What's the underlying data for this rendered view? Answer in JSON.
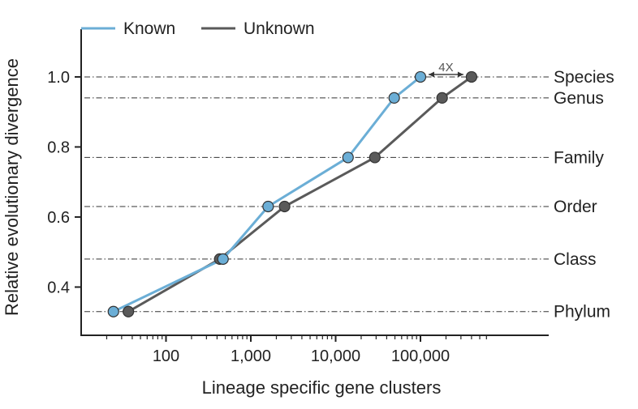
{
  "chart_data": {
    "type": "line",
    "xlabel": "Lineage specific gene clusters",
    "ylabel": "Relative evolutionary divergence",
    "x_scale": "log",
    "xlim": [
      10,
      600000
    ],
    "ylim": [
      0.26,
      1.05
    ],
    "x_ticks": [
      {
        "value": 100,
        "label": "100"
      },
      {
        "value": 1000,
        "label": "1,000"
      },
      {
        "value": 10000,
        "label": "10,000"
      },
      {
        "value": 100000,
        "label": "100,000"
      }
    ],
    "y_ticks": [
      {
        "value": 0.4,
        "label": "0.4"
      },
      {
        "value": 0.6,
        "label": "0.6"
      },
      {
        "value": 0.8,
        "label": "0.8"
      },
      {
        "value": 1.0,
        "label": "1.0"
      }
    ],
    "ranks": [
      {
        "name": "Phylum",
        "y": 0.33
      },
      {
        "name": "Class",
        "y": 0.48
      },
      {
        "name": "Order",
        "y": 0.63
      },
      {
        "name": "Family",
        "y": 0.77
      },
      {
        "name": "Genus",
        "y": 0.94
      },
      {
        "name": "Species",
        "y": 1.0
      }
    ],
    "series": [
      {
        "name": "Known",
        "color": "#6baed6",
        "point_color": "#6baed6",
        "x": [
          24,
          470,
          1600,
          14000,
          49000,
          100000
        ],
        "y": [
          0.33,
          0.48,
          0.63,
          0.77,
          0.94,
          1.0
        ]
      },
      {
        "name": "Unknown",
        "color": "#5a5a5a",
        "point_color": "#5a5a5a",
        "x": [
          36,
          430,
          2500,
          29000,
          180000,
          400000
        ],
        "y": [
          0.33,
          0.48,
          0.63,
          0.77,
          0.94,
          1.0
        ]
      }
    ],
    "annotations": [
      {
        "text": "4X",
        "type": "double-arrow",
        "x_from": 100000,
        "x_to": 400000,
        "y": 1.0
      }
    ],
    "grid": "dash-dot lines at rank levels",
    "legend": {
      "position": "top-left",
      "orientation": "horizontal"
    }
  }
}
